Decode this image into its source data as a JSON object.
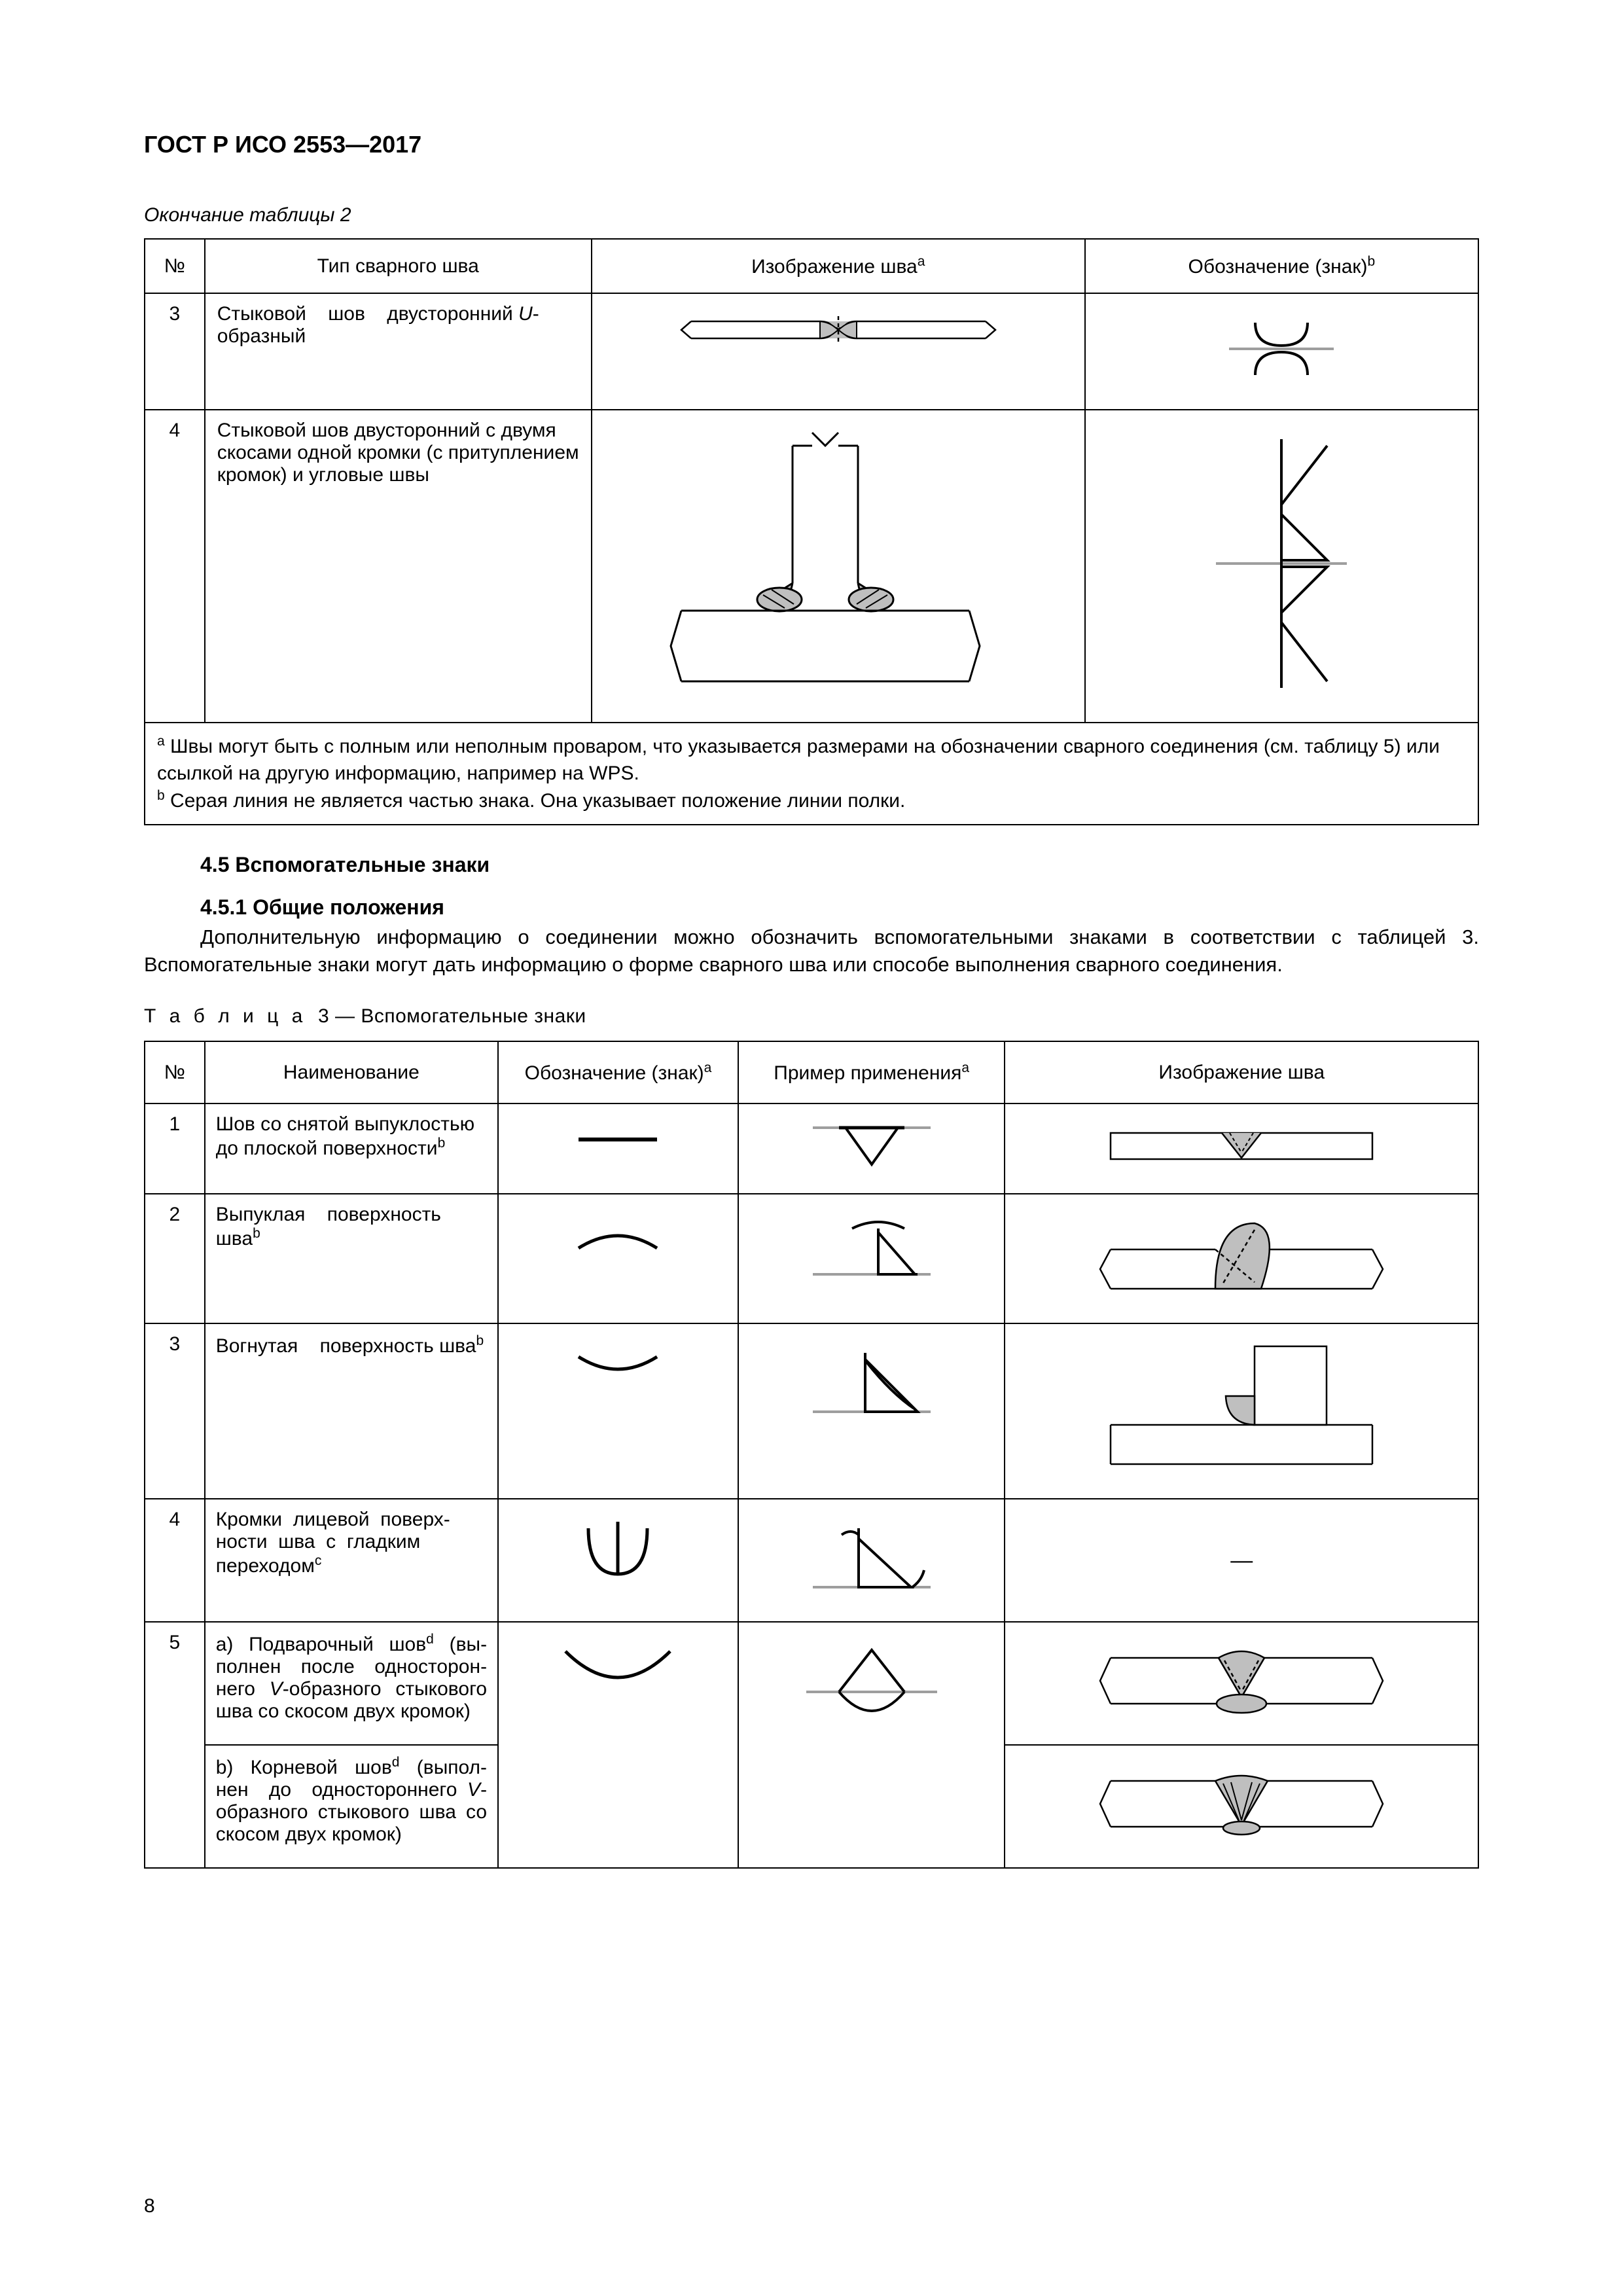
{
  "document_id": "ГОСТ Р ИСО 2553—2017",
  "table2_continuation": "Окончание таблицы 2",
  "table2": {
    "headers": {
      "no": "№",
      "type": "Тип сварного шва",
      "image": "Изображение шва",
      "image_sup": "a",
      "symbol": "Обозначение (знак)",
      "symbol_sup": "b"
    },
    "rows": [
      {
        "no": "3",
        "type_html": "Стыковой&nbsp;&nbsp;&nbsp;&nbsp;шов&nbsp;&nbsp;&nbsp;&nbsp;двусторонний <i>U</i>-образный"
      },
      {
        "no": "4",
        "type_html": "Стыковой шов двусторонний с двумя скосами одной кромки (с притуплени­ем кромок) и угловые швы"
      }
    ],
    "footnotes": {
      "a": "Швы могут быть с полным или неполным проваром, что указывается размерами на обозначении сварного соединения (см. таблицу 5) или ссылкой на другую информацию, например на WPS.",
      "b": "Серая линия не является частью знака. Она указывает положение линии полки."
    }
  },
  "section_4_5": "4.5 Вспомогательные знаки",
  "section_4_5_1": "4.5.1 Общие положения",
  "para_4_5_1": "Дополнительную информацию о соединении можно обозначить вспомогательными знаками в со­ответствии с таблицей 3. Вспомогательные знаки могут дать информацию о форме сварного шва или способе выполнения сварного соединения.",
  "table3_caption_prefix": "Т а б л и ц а",
  "table3_caption_rest": "3 — Вспомогательные знаки",
  "table3": {
    "headers": {
      "no": "№",
      "name": "Наименование",
      "symbol": "Обозначение (знак)",
      "symbol_sup": "a",
      "example": "Пример применения",
      "example_sup": "a",
      "image": "Изображение шва"
    },
    "rows": [
      {
        "no": "1",
        "name_html": "Шов со снятой выпуклостью до плоской поверхности<sup>b</sup>"
      },
      {
        "no": "2",
        "name_html": "Выпуклая&nbsp;&nbsp;&nbsp;&nbsp;поверхность шва<sup>b</sup>"
      },
      {
        "no": "3",
        "name_html": "Вогнутая&nbsp;&nbsp;&nbsp;&nbsp;поверхность шва<sup>b</sup>"
      },
      {
        "no": "4",
        "name_html": "Кромки&nbsp;&nbsp;лицевой&nbsp;&nbsp;поверх­ности&nbsp;&nbsp;шва&nbsp;&nbsp;с&nbsp;&nbsp;гладким переходом<sup>c</sup>"
      },
      {
        "no": "5",
        "name_a_html": "a) Подварочный шов<sup>d</sup> (вы­полнен после односторон­него <i>V</i>-образного стыкового шва со скосом двух кромок)",
        "name_b_html": "b) Корневой шов<sup>d</sup> (выпол­нен&nbsp;&nbsp;до&nbsp;&nbsp;одностороннего <i>V</i>-образного стыкового шва со скосом двух кромок)"
      }
    ]
  },
  "page_number": "8",
  "colors": {
    "text": "#000000",
    "background": "#ffffff",
    "symbol_grey": "#9e9e9e",
    "weld_fill": "#bfbfbf"
  },
  "stroke": {
    "thin": 2.5,
    "thick": 4
  }
}
